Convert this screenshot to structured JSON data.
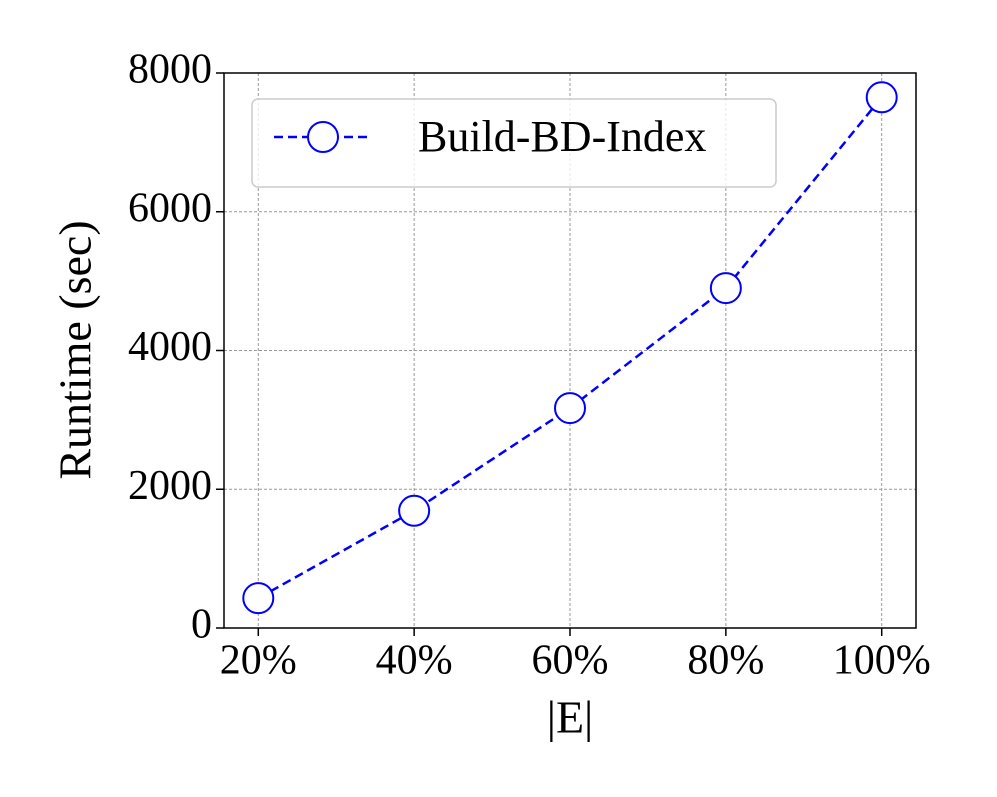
{
  "chart_data": {
    "type": "line",
    "x_label": "|E|",
    "y_label": "Runtime (sec)",
    "categories": [
      "20%",
      "40%",
      "60%",
      "80%",
      "100%"
    ],
    "series": [
      {
        "name": "Build-BD-Index",
        "color": "#0000ff",
        "values": [
          430,
          1690,
          3170,
          4900,
          7650
        ]
      }
    ],
    "ylim": [
      0,
      8000
    ],
    "yticks": [
      0,
      2000,
      4000,
      6000,
      8000
    ],
    "grid": true,
    "legend": "upper left",
    "line_style": "dashed",
    "marker": "circle"
  }
}
